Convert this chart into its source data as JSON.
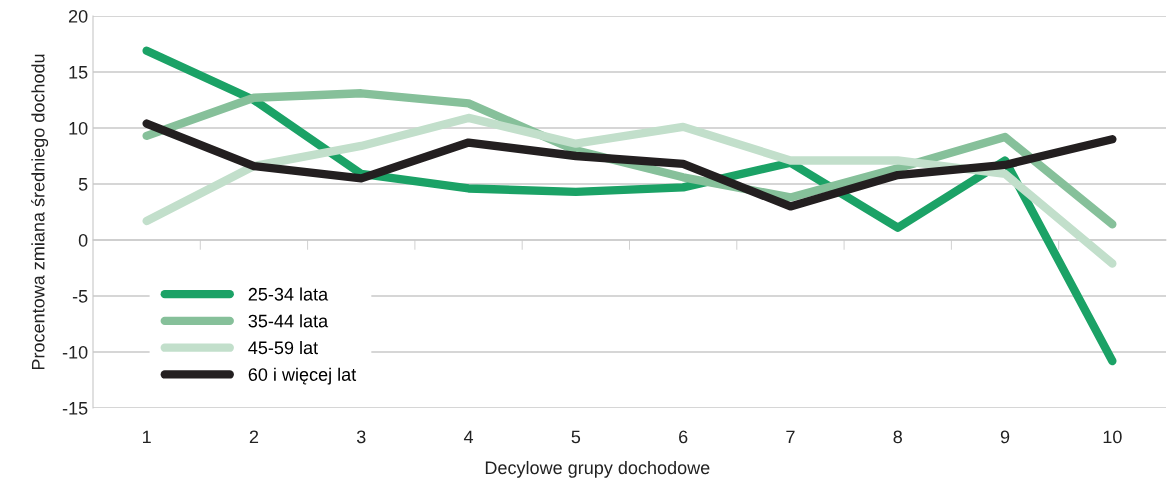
{
  "chart_data": {
    "type": "line",
    "xlabel": "Decylowe grupy dochodowe",
    "ylabel": "Procentowa zmiana średniego dochodu",
    "categories": [
      "1",
      "2",
      "3",
      "4",
      "5",
      "6",
      "7",
      "8",
      "9",
      "10"
    ],
    "series": [
      {
        "name": "25-34 lata",
        "color": "#1ba266",
        "values": [
          16.9,
          12.5,
          5.9,
          4.6,
          4.3,
          4.7,
          6.9,
          1.1,
          7.1,
          -10.8
        ]
      },
      {
        "name": "35-44 lata",
        "color": "#86c09a",
        "values": [
          9.3,
          12.7,
          13.1,
          12.2,
          8.0,
          5.6,
          3.8,
          6.4,
          9.2,
          1.4
        ]
      },
      {
        "name": "45-59 lat",
        "color": "#c2dfcb",
        "values": [
          1.7,
          6.6,
          8.4,
          10.9,
          8.6,
          10.1,
          7.1,
          7.1,
          5.9,
          -2.1
        ]
      },
      {
        "name": "60 i więcej lat",
        "color": "#231f20",
        "values": [
          10.4,
          6.6,
          5.5,
          8.7,
          7.5,
          6.8,
          3.0,
          5.8,
          6.7,
          9.0
        ]
      }
    ],
    "ylim": [
      -15,
      20
    ],
    "yticks": [
      -15,
      -10,
      -5,
      0,
      5,
      10,
      15,
      20
    ],
    "grid": "y",
    "legend": "bottom left",
    "marker": "none",
    "line_style": "solid"
  }
}
